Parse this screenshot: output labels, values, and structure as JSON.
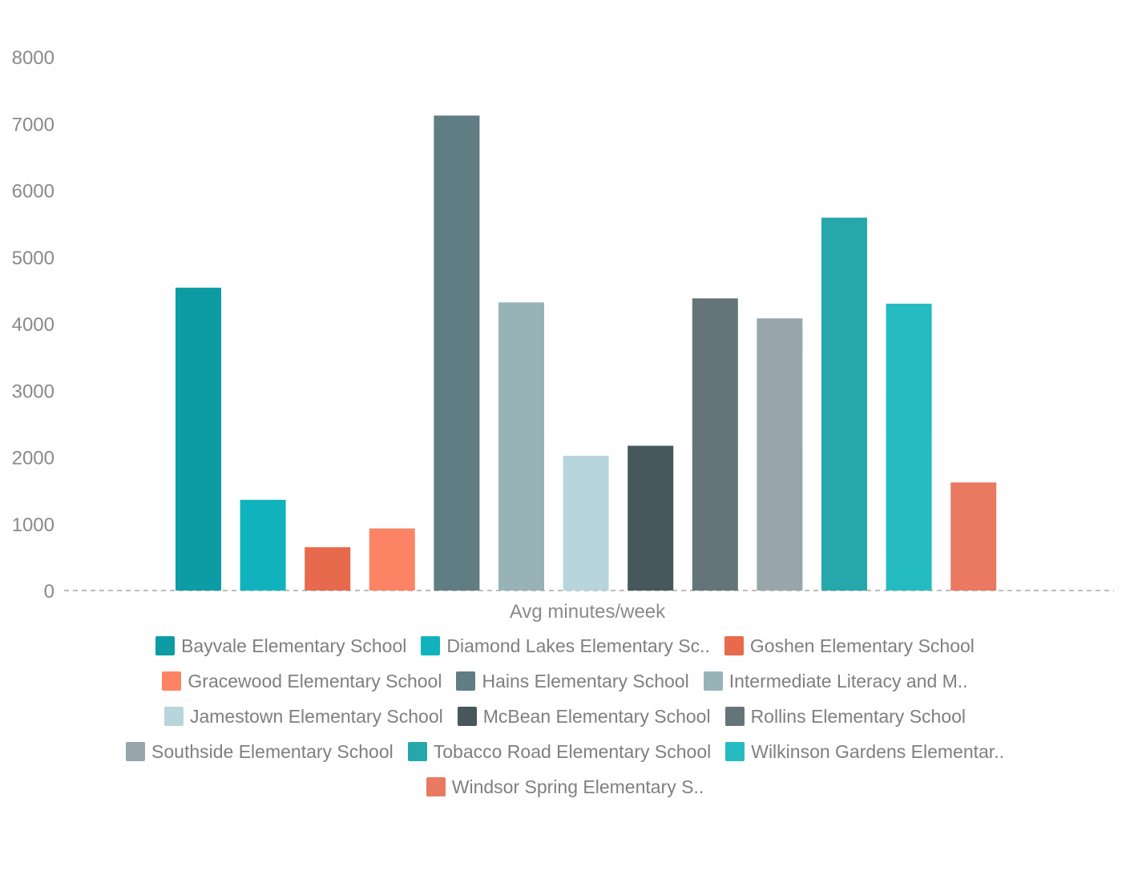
{
  "chart_data": {
    "type": "bar",
    "xlabel": "Avg minutes/week",
    "ylabel": "",
    "ylim": [
      0,
      8000
    ],
    "yticks": [
      0,
      1000,
      2000,
      3000,
      4000,
      5000,
      6000,
      7000,
      8000
    ],
    "grid": false,
    "legend_position": "bottom",
    "series": [
      {
        "name": "Bayvale Elementary School",
        "value": 4540,
        "color": "#0e9ca4"
      },
      {
        "name": "Diamond Lakes Elementary Sc..",
        "value": 1360,
        "color": "#10b3bd"
      },
      {
        "name": "Goshen Elementary School",
        "value": 650,
        "color": "#e76a4c"
      },
      {
        "name": "Gracewood Elementary School",
        "value": 930,
        "color": "#fc8364"
      },
      {
        "name": "Hains Elementary School",
        "value": 7120,
        "color": "#5f7d82"
      },
      {
        "name": "Intermediate Literacy and M..",
        "value": 4320,
        "color": "#97b3b8"
      },
      {
        "name": "Jamestown Elementary School",
        "value": 2020,
        "color": "#b7d5da"
      },
      {
        "name": "McBean Elementary School",
        "value": 2170,
        "color": "#47575c"
      },
      {
        "name": "Rollins Elementary School",
        "value": 4380,
        "color": "#657478"
      },
      {
        "name": "Southside Elementary School",
        "value": 4080,
        "color": "#98a6ab"
      },
      {
        "name": "Tobacco Road Elementary School",
        "value": 5590,
        "color": "#26a7aa"
      },
      {
        "name": "Wilkinson Gardens Elementar..",
        "value": 4300,
        "color": "#24bcc1"
      },
      {
        "name": "Windsor Spring Elementary S..",
        "value": 1620,
        "color": "#ea7961"
      }
    ]
  }
}
